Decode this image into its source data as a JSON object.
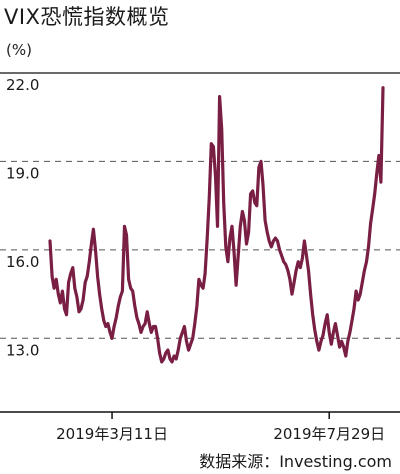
{
  "title": "VIX恐慌指数概览",
  "unit_label": "(%)",
  "source": "数据来源：Investing.com",
  "colors": {
    "line": "#7a1f44",
    "grid": "#555555",
    "axis": "#111111"
  },
  "chart_data": {
    "type": "line",
    "title": "VIX恐慌指数概览",
    "ylabel": "(%)",
    "ylim": [
      10.5,
      22.0
    ],
    "yticks": [
      {
        "value": 22.0,
        "label": "22.0"
      },
      {
        "value": 19.0,
        "label": "19.0"
      },
      {
        "value": 16.0,
        "label": "16.0"
      },
      {
        "value": 13.0,
        "label": "13.0"
      }
    ],
    "xticks": [
      {
        "index": 30,
        "label": "2019年3月11日"
      },
      {
        "index": 135,
        "label": "2019年7月29日"
      }
    ],
    "grid": "horizontal dashed",
    "values": [
      16.3,
      15.1,
      14.7,
      15.0,
      14.5,
      14.2,
      14.6,
      14.0,
      13.8,
      14.9,
      15.2,
      15.4,
      14.7,
      14.4,
      13.9,
      14.0,
      14.3,
      14.9,
      15.1,
      15.6,
      16.2,
      16.7,
      16.0,
      15.1,
      14.5,
      14.0,
      13.6,
      13.4,
      13.5,
      13.2,
      13.0,
      13.4,
      13.7,
      14.1,
      14.4,
      14.6,
      16.8,
      16.5,
      15.0,
      14.7,
      14.6,
      14.1,
      13.7,
      13.5,
      13.2,
      13.4,
      13.5,
      13.9,
      13.5,
      13.2,
      13.4,
      13.4,
      13.0,
      12.5,
      12.2,
      12.3,
      12.5,
      12.6,
      12.3,
      12.2,
      12.4,
      12.3,
      12.6,
      13.0,
      13.2,
      13.4,
      12.9,
      12.6,
      12.8,
      13.0,
      13.5,
      14.1,
      15.0,
      14.8,
      14.7,
      15.2,
      16.4,
      17.8,
      19.6,
      19.5,
      18.5,
      16.8,
      21.2,
      20.1,
      17.6,
      16.1,
      15.6,
      16.4,
      16.8,
      15.9,
      14.8,
      15.8,
      16.8,
      17.3,
      17.0,
      16.2,
      16.6,
      17.9,
      18.0,
      17.6,
      17.5,
      18.8,
      19.0,
      18.2,
      17.0,
      16.6,
      16.3,
      16.1,
      16.3,
      16.4,
      16.3,
      16.0,
      15.8,
      15.6,
      15.5,
      15.3,
      15.0,
      14.5,
      14.9,
      15.3,
      15.6,
      15.4,
      15.7,
      16.3,
      15.8,
      15.3,
      14.5,
      13.8,
      13.3,
      12.9,
      12.6,
      12.9,
      13.1,
      13.5,
      13.8,
      13.2,
      12.8,
      13.2,
      13.5,
      13.1,
      12.7,
      12.9,
      12.7,
      12.4,
      12.9,
      13.2,
      13.6,
      14.0,
      14.6,
      14.3,
      14.5,
      14.9,
      15.3,
      15.6,
      16.1,
      16.9,
      17.4,
      17.9,
      18.6,
      19.2,
      18.3,
      21.5
    ]
  }
}
